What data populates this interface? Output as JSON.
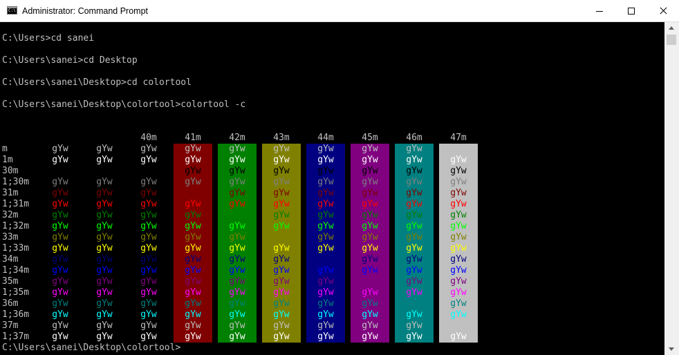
{
  "window": {
    "title": "Administrator: Command Prompt",
    "icon": "cmd-icon",
    "icon_text": "C:\\"
  },
  "console": {
    "lines": [
      "C:\\Users>cd sanei",
      "C:\\Users\\sanei>cd Desktop",
      "C:\\Users\\sanei\\Desktop>cd colortool",
      "C:\\Users\\sanei\\Desktop\\colortool>colortool -c"
    ],
    "prompt": "C:\\Users\\sanei\\Desktop\\colortool>"
  },
  "color_table": {
    "sample_text": "gYw",
    "column_headers": [
      "",
      "",
      "40m",
      "41m",
      "42m",
      "43m",
      "44m",
      "45m",
      "46m",
      "47m"
    ],
    "row_labels": [
      "m",
      "1m",
      "30m",
      "1;30m",
      "31m",
      "1;31m",
      "32m",
      "1;32m",
      "33m",
      "1;33m",
      "34m",
      "1;34m",
      "35m",
      "1;35m",
      "36m",
      "1;36m",
      "37m",
      "1;37m"
    ],
    "backgrounds": [
      "#000000",
      "#000000",
      "#000000",
      "#800000",
      "#008000",
      "#808000",
      "#000080",
      "#800080",
      "#008080",
      "#c0c0c0"
    ],
    "foregrounds": [
      "#c0c0c0",
      "#ffffff",
      "#000000",
      "#808080",
      "#800000",
      "#ff0000",
      "#008000",
      "#00ff00",
      "#808000",
      "#ffff00",
      "#000080",
      "#0000ff",
      "#800080",
      "#ff00ff",
      "#008080",
      "#00ffff",
      "#c0c0c0",
      "#ffffff"
    ]
  }
}
